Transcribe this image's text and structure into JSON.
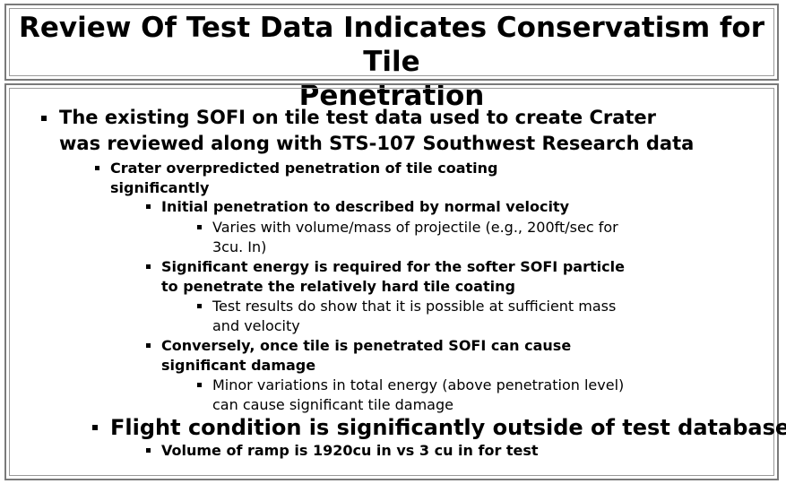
{
  "slide": {
    "title_line1": "Review Of Test Data Indicates Conservatism for Tile",
    "title_line2": "Penetration",
    "bullets": {
      "b1": {
        "line1": "The existing SOFI on tile test data used to create Crater",
        "line2": "was reviewed along with STS-107 Southwest Research data"
      },
      "b1_1": {
        "line1": "Crater overpredicted penetration of tile coating",
        "line2": "significantly"
      },
      "b1_1_1": {
        "line1": "Initial penetration to described by normal velocity"
      },
      "b1_1_1_1": {
        "line1": "Varies with volume/mass of projectile (e.g., 200ft/sec for",
        "line2": "3cu. In)"
      },
      "b1_1_2": {
        "line1": "Significant energy is required for the softer SOFI particle",
        "line2": "to penetrate the relatively hard tile coating"
      },
      "b1_1_2_1": {
        "line1": "Test results do show that it is possible at sufficient mass",
        "line2": "and velocity"
      },
      "b1_1_3": {
        "line1": "Conversely, once tile is penetrated SOFI can cause",
        "line2": "significant damage"
      },
      "b1_1_3_1": {
        "line1": "Minor variations in total energy (above penetration level)",
        "line2": "can cause significant tile damage"
      },
      "b2": {
        "line1": "Flight condition is significantly outside of test database"
      },
      "b2_1": {
        "line1": "Volume of ramp is 1920cu in vs 3 cu in for test"
      }
    }
  }
}
